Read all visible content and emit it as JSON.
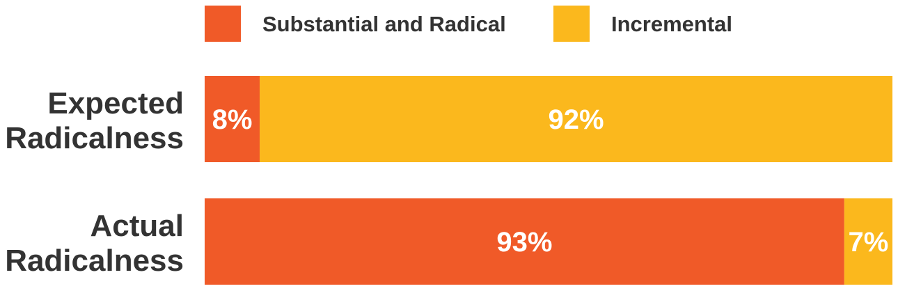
{
  "chart_data": {
    "type": "bar",
    "orientation": "horizontal",
    "stacked": true,
    "percent_stacked": true,
    "categories": [
      [
        "Expected",
        "Radicalness"
      ],
      [
        "Actual",
        "Radicalness"
      ]
    ],
    "series": [
      {
        "name": "Substantial and Radical",
        "color": "#F05A28",
        "values": [
          8,
          93
        ],
        "labels": [
          "8%",
          "93%"
        ]
      },
      {
        "name": "Incremental",
        "color": "#FBB81D",
        "values": [
          92,
          7
        ],
        "labels": [
          "92%",
          "7%"
        ]
      }
    ],
    "xlim": [
      0,
      100
    ],
    "legend_position": "top",
    "grid": false,
    "title": "",
    "xlabel": "",
    "ylabel": ""
  }
}
